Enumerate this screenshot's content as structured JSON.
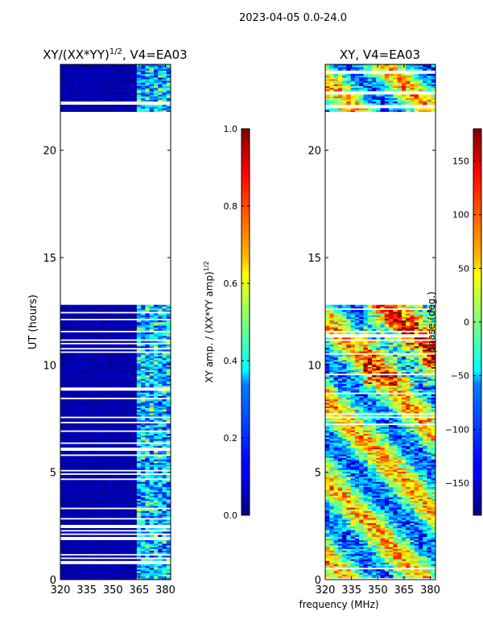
{
  "figure_title": "2023-04-05 0.0-24.0",
  "shared_xlabel": "frequency (MHz)",
  "chart_data": [
    {
      "type": "heatmap",
      "title_main": "XY/(XX*YY)",
      "title_exp": "1/2",
      "title_suffix": ", V4=EA03",
      "ylabel": "UT (hours)",
      "xlim": [
        320,
        383
      ],
      "ylim": [
        0,
        24
      ],
      "xticks": [
        "320",
        "335",
        "350",
        "365",
        "380"
      ],
      "xtick_values": [
        320,
        335,
        350,
        365,
        380
      ],
      "yticks": [
        "0",
        "5",
        "10",
        "15",
        "20"
      ],
      "ytick_values": [
        0,
        5,
        10,
        15,
        20
      ],
      "data_ut_ranges": [
        [
          0.0,
          12.8
        ],
        [
          21.8,
          24.0
        ]
      ],
      "colormap": "jet",
      "colorbar": {
        "label_main": "XY amp. / (XX*YY amp)",
        "label_exp": "1/2",
        "range": [
          0.0,
          1.0
        ],
        "ticks": [
          "0.0",
          "0.2",
          "0.4",
          "0.6",
          "0.8",
          "1.0"
        ],
        "tick_values": [
          0.0,
          0.2,
          0.4,
          0.6,
          0.8,
          1.0
        ]
      }
    },
    {
      "type": "heatmap",
      "title_main": "XY, V4=EA03",
      "ylabel": "",
      "xlim": [
        320,
        383
      ],
      "ylim": [
        0,
        24
      ],
      "xticks": [
        "320",
        "335",
        "350",
        "365",
        "380"
      ],
      "xtick_values": [
        320,
        335,
        350,
        365,
        380
      ],
      "yticks": [
        "0",
        "5",
        "10",
        "15",
        "20"
      ],
      "ytick_values": [
        0,
        5,
        10,
        15,
        20
      ],
      "data_ut_ranges": [
        [
          0.0,
          12.8
        ],
        [
          21.8,
          24.0
        ]
      ],
      "colormap": "jet",
      "colorbar": {
        "label_main": "phase (deg.)",
        "range": [
          -180,
          180
        ],
        "ticks": [
          "150",
          "100",
          "50",
          "0",
          "−50",
          "−100",
          "−150"
        ],
        "tick_values": [
          150,
          100,
          50,
          0,
          -50,
          -100,
          -150
        ]
      }
    }
  ]
}
